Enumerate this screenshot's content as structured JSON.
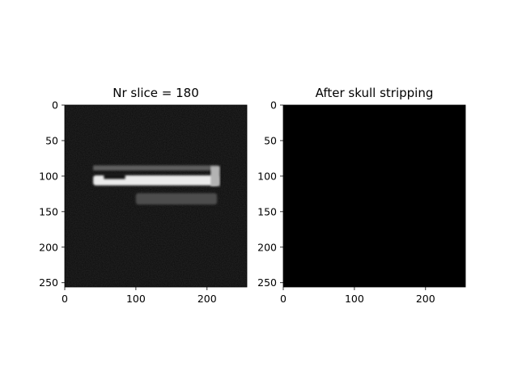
{
  "chart_data": [
    {
      "type": "heatmap",
      "title": "Nr slice = 180",
      "xlim": [
        0,
        256
      ],
      "ylim": [
        256,
        0
      ],
      "x_ticks": [
        0,
        100,
        200
      ],
      "y_ticks": [
        0,
        50,
        100,
        150,
        200,
        250
      ],
      "grid": false,
      "colormap": "gray",
      "background_intensity": 0.04,
      "image_regions": [
        {
          "label": "upper dim band",
          "x": [
            40,
            216
          ],
          "y": [
            85,
            92
          ],
          "intensity": 0.38
        },
        {
          "label": "bright band",
          "x": [
            40,
            216
          ],
          "y": [
            99,
            113
          ],
          "intensity": 0.92
        },
        {
          "label": "dark spot",
          "x": [
            55,
            85
          ],
          "y": [
            96,
            104
          ],
          "intensity": 0.08
        },
        {
          "label": "right bright edge",
          "x": [
            205,
            218
          ],
          "y": [
            86,
            114
          ],
          "intensity": 0.7
        },
        {
          "label": "lower band",
          "x": [
            100,
            214
          ],
          "y": [
            124,
            140
          ],
          "intensity": 0.3
        }
      ]
    },
    {
      "type": "heatmap",
      "title": "After skull stripping",
      "xlim": [
        0,
        256
      ],
      "ylim": [
        256,
        0
      ],
      "x_ticks": [
        0,
        100,
        200
      ],
      "y_ticks": [
        0,
        50,
        100,
        150,
        200,
        250
      ],
      "grid": false,
      "colormap": "gray",
      "background_intensity": 0,
      "image_regions": []
    }
  ]
}
